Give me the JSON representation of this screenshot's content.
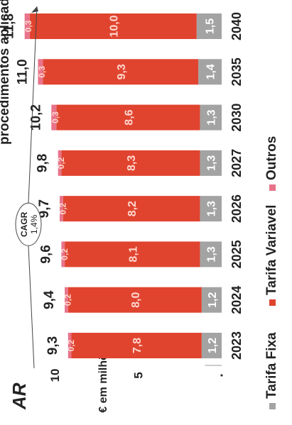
{
  "chart_data": {
    "type": "bar",
    "stacked": true,
    "orientation": "rotated-90",
    "title_fragment": "AR",
    "header_cut_text": "procedimentos aplicados se",
    "ylabel": "€ em milhões",
    "y_ticks": [
      "10",
      "5"
    ],
    "categories": [
      "2023",
      "2024",
      "2025",
      "2026",
      "2027",
      "2030",
      "2035",
      "2040"
    ],
    "totals": [
      "9,3",
      "9,4",
      "9,6",
      "9,7",
      "9,8",
      "10,2",
      "11,0",
      "11,8"
    ],
    "series": [
      {
        "name": "Tarifa Fixa",
        "color": "#a3a3a3",
        "values": [
          1.2,
          1.2,
          1.3,
          1.3,
          1.3,
          1.3,
          1.4,
          1.5
        ],
        "labels": [
          "1,2",
          "1,2",
          "1,3",
          "1,3",
          "1,3",
          "1,3",
          "1,4",
          "1,5"
        ]
      },
      {
        "name": "Tarifa Variavel",
        "color": "#e0442f",
        "values": [
          7.8,
          8.0,
          8.1,
          8.2,
          8.3,
          8.6,
          9.3,
          10.0
        ],
        "labels": [
          "7,8",
          "8,0",
          "8,1",
          "8,2",
          "8,3",
          "8,6",
          "9,3",
          "10,0"
        ]
      },
      {
        "name": "Outros",
        "color": "#e8738a",
        "values": [
          0.2,
          0.2,
          0.2,
          0.2,
          0.2,
          0.3,
          0.3,
          0.3
        ],
        "labels": [
          "0,2",
          "0,2",
          "0,2",
          "0,2",
          "0,2",
          "0,3",
          "0,3",
          "0,3"
        ]
      }
    ],
    "ylim": [
      0,
      12
    ],
    "legend_position": "bottom",
    "annotation": {
      "line1": "CAGR",
      "line2": "1,4%"
    }
  }
}
